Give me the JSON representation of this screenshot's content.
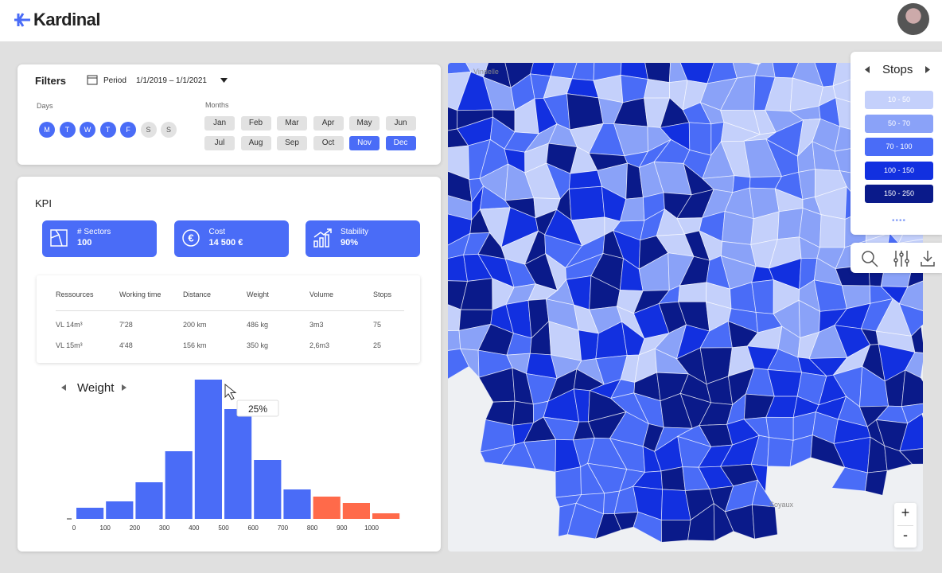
{
  "header": {
    "brand": "Kardinal"
  },
  "filters": {
    "title": "Filters",
    "period_label": "Period",
    "period": "1/1/2019 – 1/1/2021",
    "days_label": "Days",
    "days": [
      {
        "label": "M",
        "selected": true
      },
      {
        "label": "T",
        "selected": true
      },
      {
        "label": "W",
        "selected": true
      },
      {
        "label": "T",
        "selected": true
      },
      {
        "label": "F",
        "selected": true
      },
      {
        "label": "S",
        "selected": false
      },
      {
        "label": "S",
        "selected": false
      }
    ],
    "months_label": "Months",
    "months": [
      {
        "label": "Jan",
        "selected": false
      },
      {
        "label": "Feb",
        "selected": false
      },
      {
        "label": "Mar",
        "selected": false
      },
      {
        "label": "Apr",
        "selected": false
      },
      {
        "label": "May",
        "selected": false
      },
      {
        "label": "Jun",
        "selected": false
      },
      {
        "label": "Jul",
        "selected": false
      },
      {
        "label": "Aug",
        "selected": false
      },
      {
        "label": "Sep",
        "selected": false
      },
      {
        "label": "Oct",
        "selected": false
      },
      {
        "label": "Nov",
        "selected": true
      },
      {
        "label": "Dec",
        "selected": true
      }
    ]
  },
  "kpi": {
    "title": "KPI",
    "cards": [
      {
        "label": "# Sectors",
        "value": "100"
      },
      {
        "label": "Cost",
        "value": "14 500 €"
      },
      {
        "label": "Stability",
        "value": "90%"
      }
    ],
    "table": {
      "headers": [
        "Ressources",
        "Working time",
        "Distance",
        "Weight",
        "Volume",
        "Stops"
      ],
      "rows": [
        [
          "VL 14m³",
          "7'28",
          "200 km",
          "486 kg",
          "3m3",
          "75"
        ],
        [
          "VL 15m³",
          "4'48",
          "156 km",
          "350 kg",
          "2,6m3",
          "25"
        ]
      ]
    }
  },
  "histogram": {
    "type": "bar",
    "title": "Weight",
    "categories": [
      0,
      100,
      200,
      300,
      400,
      500,
      600,
      700,
      800,
      900,
      1000
    ],
    "values": [
      14,
      22,
      46,
      85,
      175,
      138,
      74,
      37,
      28,
      20,
      7
    ],
    "colors": [
      "#4a6cf7",
      "#4a6cf7",
      "#4a6cf7",
      "#4a6cf7",
      "#4a6cf7",
      "#4a6cf7",
      "#4a6cf7",
      "#4a6cf7",
      "#ff6a4a",
      "#ff6a4a",
      "#ff6a4a"
    ],
    "tooltip": "25%"
  },
  "map": {
    "labels": [
      "Vindelle",
      "Soyaux"
    ],
    "legend": {
      "title": "Stops",
      "ranges": [
        {
          "label": "10 - 50",
          "color": "#c4d0fb"
        },
        {
          "label": "50 - 70",
          "color": "#8aa2f8"
        },
        {
          "label": "70 - 100",
          "color": "#4a6cf7"
        },
        {
          "label": "100 - 150",
          "color": "#1230e0"
        },
        {
          "label": "150 - 250",
          "color": "#0a1a8a"
        }
      ]
    },
    "zoom": [
      "+",
      "-"
    ]
  }
}
